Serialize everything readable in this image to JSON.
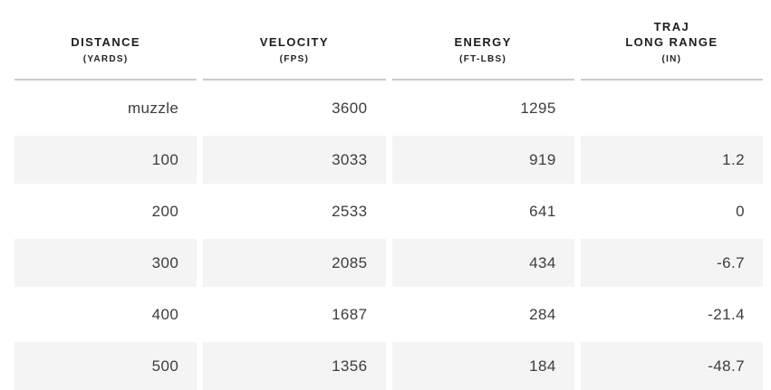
{
  "table": {
    "columns": [
      {
        "label_top": "",
        "label": "DISTANCE",
        "unit": "(YARDS)"
      },
      {
        "label_top": "",
        "label": "VELOCITY",
        "unit": "(FPS)"
      },
      {
        "label_top": "",
        "label": "ENERGY",
        "unit": "(FT-LBS)"
      },
      {
        "label_top": "TRAJ",
        "label": "LONG RANGE",
        "unit": "(IN)"
      }
    ],
    "rows": [
      [
        "muzzle",
        "3600",
        "1295",
        ""
      ],
      [
        "100",
        "3033",
        "919",
        "1.2"
      ],
      [
        "200",
        "2533",
        "641",
        "0"
      ],
      [
        "300",
        "2085",
        "434",
        "-6.7"
      ],
      [
        "400",
        "1687",
        "284",
        "-21.4"
      ],
      [
        "500",
        "1356",
        "184",
        "-48.7"
      ]
    ]
  },
  "colors": {
    "row_shade": "#f4f4f4",
    "divider": "#cbcbcb",
    "header_text": "#1d1d1d",
    "cell_text": "#3d3d3d",
    "background": "#ffffff"
  },
  "chart_data": {
    "type": "table",
    "title": "Ballistics table",
    "columns": [
      "DISTANCE (YARDS)",
      "VELOCITY (FPS)",
      "ENERGY (FT-LBS)",
      "TRAJ LONG RANGE (IN)"
    ],
    "distance_yards": [
      "muzzle",
      100,
      200,
      300,
      400,
      500
    ],
    "velocity_fps": [
      3600,
      3033,
      2533,
      2085,
      1687,
      1356
    ],
    "energy_ft_lbs": [
      1295,
      919,
      641,
      434,
      284,
      184
    ],
    "traj_long_range_in": [
      null,
      1.2,
      0,
      -6.7,
      -21.4,
      -48.7
    ]
  }
}
